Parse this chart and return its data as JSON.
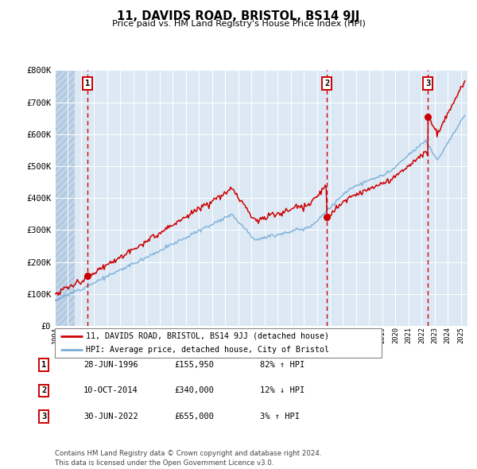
{
  "title": "11, DAVIDS ROAD, BRISTOL, BS14 9JJ",
  "subtitle": "Price paid vs. HM Land Registry's House Price Index (HPI)",
  "background_color": "#ffffff",
  "plot_bg_color": "#dce9f5",
  "grid_color": "#ffffff",
  "ylim": [
    0,
    800000
  ],
  "yticks": [
    0,
    100000,
    200000,
    300000,
    400000,
    500000,
    600000,
    700000,
    800000
  ],
  "ytick_labels": [
    "£0",
    "£100K",
    "£200K",
    "£300K",
    "£400K",
    "£500K",
    "£600K",
    "£700K",
    "£800K"
  ],
  "sale_dates": [
    1996.49,
    2014.78,
    2022.49
  ],
  "sale_prices": [
    155950,
    340000,
    655000
  ],
  "sale_labels": [
    "1",
    "2",
    "3"
  ],
  "sale_color": "#cc0000",
  "hpi_line_color": "#7aaed6",
  "price_line_color": "#cc0000",
  "legend_label_price": "11, DAVIDS ROAD, BRISTOL, BS14 9JJ (detached house)",
  "legend_label_hpi": "HPI: Average price, detached house, City of Bristol",
  "table_rows": [
    [
      "1",
      "28-JUN-1996",
      "£155,950",
      "82% ↑ HPI"
    ],
    [
      "2",
      "10-OCT-2014",
      "£340,000",
      "12% ↓ HPI"
    ],
    [
      "3",
      "30-JUN-2022",
      "£655,000",
      "3% ↑ HPI"
    ]
  ],
  "footnote": "Contains HM Land Registry data © Crown copyright and database right 2024.\nThis data is licensed under the Open Government Licence v3.0.",
  "xlim": [
    1994.0,
    2025.5
  ],
  "hatch_end": 1995.5
}
